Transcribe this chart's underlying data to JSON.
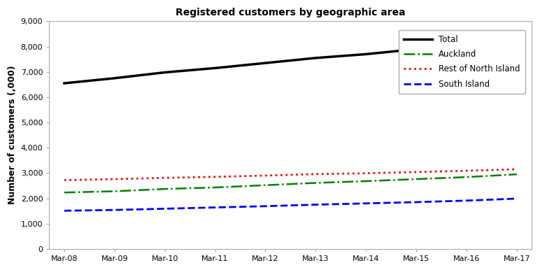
{
  "title": "Registered customers by geographic area",
  "ylabel": "Number of customers (,000)",
  "x_labels": [
    "Mar-08",
    "Mar-09",
    "Mar-10",
    "Mar-11",
    "Mar-12",
    "Mar-13",
    "Mar-14",
    "Mar-15",
    "Mar-16",
    "Mar-17"
  ],
  "ylim": [
    0,
    9000
  ],
  "yticks": [
    0,
    1000,
    2000,
    3000,
    4000,
    5000,
    6000,
    7000,
    8000,
    9000
  ],
  "series": [
    {
      "label": "Total",
      "color": "#000000",
      "linestyle": "solid",
      "linewidth": 2.5,
      "values": [
        6550,
        6750,
        6980,
        7150,
        7350,
        7550,
        7700,
        7900,
        8050,
        8200
      ]
    },
    {
      "label": "Auckland",
      "color": "#008000",
      "linestyle": "dashdot",
      "linewidth": 1.8,
      "values": [
        2230,
        2280,
        2370,
        2430,
        2520,
        2610,
        2680,
        2760,
        2840,
        2950
      ]
    },
    {
      "label": "Rest of North Island",
      "color": "#ff0000",
      "linestyle": "dotted",
      "linewidth": 2.0,
      "values": [
        2720,
        2760,
        2810,
        2850,
        2900,
        2960,
        2990,
        3040,
        3090,
        3150
      ]
    },
    {
      "label": "South Island",
      "color": "#0000ff",
      "linestyle": "dashed",
      "linewidth": 2.0,
      "values": [
        1510,
        1540,
        1590,
        1640,
        1690,
        1750,
        1800,
        1850,
        1910,
        1990
      ]
    }
  ],
  "background_color": "#ffffff",
  "title_fontsize": 10,
  "axis_fontsize": 9,
  "tick_fontsize": 8,
  "legend_fontsize": 8.5
}
